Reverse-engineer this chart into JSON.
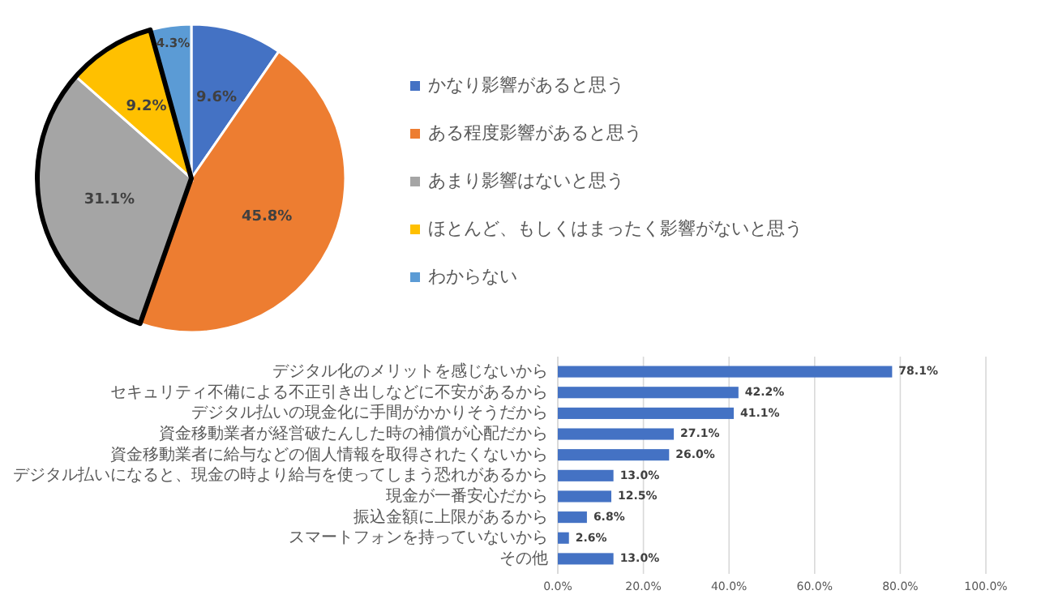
{
  "chart_data": [
    {
      "type": "pie",
      "categories": [
        "かなり影響があると思う",
        "ある程度影響があると思う",
        "あまり影響はないと思う",
        "ほとんど、もしくはまったく影響がないと思う",
        "わからない"
      ],
      "values": [
        9.6,
        45.8,
        31.1,
        9.2,
        4.3
      ],
      "colors": [
        "#4472c4",
        "#ed7d31",
        "#a5a5a5",
        "#ffc000",
        "#5b9bd5"
      ],
      "value_labels": [
        "9.6%",
        "45.8%",
        "31.1%",
        "9.2%",
        "4.3%"
      ],
      "legend": "right"
    },
    {
      "type": "bar",
      "orientation": "horizontal",
      "categories": [
        "デジタル化のメリットを感じないから",
        "セキュリティ不備による不正引き出しなどに不安があるから",
        "デジタル払いの現金化に手間がかかりそうだから",
        "資金移動業者が経営破たんした時の補償が心配だから",
        "資金移動業者に給与などの個人情報を取得されたくないから",
        "デジタル払いになると、現金の時より給与を使ってしまう恐れがあるから",
        "現金が一番安心だから",
        "振込金額に上限があるから",
        "スマートフォンを持っていないから",
        "その他"
      ],
      "values": [
        78.1,
        42.2,
        41.1,
        27.1,
        26.0,
        13.0,
        12.5,
        6.8,
        2.6,
        13.0
      ],
      "color": "#4472c4",
      "value_labels": [
        "78.1%",
        "42.2%",
        "41.1%",
        "27.1%",
        "26.0%",
        "13.0%",
        "12.5%",
        "6.8%",
        "2.6%",
        "13.0%"
      ],
      "xlim": [
        0,
        100
      ],
      "xticks": [
        {
          "value": 0,
          "label": "0.0%"
        },
        {
          "value": 20,
          "label": "20.0%"
        },
        {
          "value": 40,
          "label": "40.0%"
        },
        {
          "value": 60,
          "label": "60.0%"
        },
        {
          "value": 80,
          "label": "80.0%"
        },
        {
          "value": 100,
          "label": "100.0%"
        }
      ],
      "grid": "x"
    }
  ]
}
